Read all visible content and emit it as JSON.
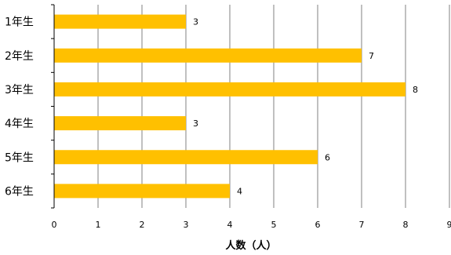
{
  "chart_data": {
    "type": "bar",
    "orientation": "horizontal",
    "categories": [
      "1年生",
      "2年生",
      "3年生",
      "4年生",
      "5年生",
      "6年生"
    ],
    "values": [
      3,
      7,
      8,
      3,
      6,
      4
    ],
    "x_ticks": [
      "0",
      "1",
      "2",
      "3",
      "4",
      "5",
      "6",
      "7",
      "8",
      "9"
    ],
    "xlim": [
      0,
      9
    ],
    "xlabel": "人数（人）",
    "grid": true,
    "bar_color": "#FFC000",
    "grid_color": "#808080"
  }
}
